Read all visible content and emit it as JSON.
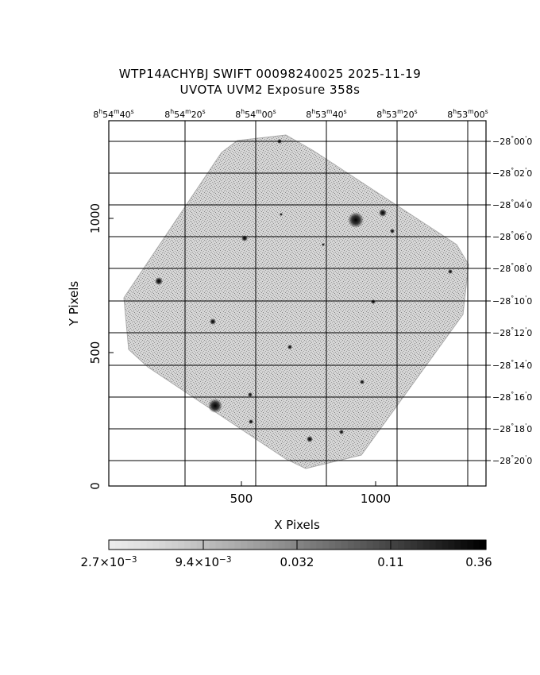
{
  "header": {
    "line1": "WTP14ACHYBJ SWIFT 00098240025 2025-11-19",
    "line2": "UVOTA UVM2 Exposure        358s"
  },
  "axes": {
    "x_label": "X Pixels",
    "y_label": "Y Pixels",
    "x_ticks": [
      "500",
      "1000"
    ],
    "y_ticks": [
      "0",
      "500",
      "1000"
    ],
    "ra_ticks": [
      {
        "h": "8",
        "m": "54",
        "s": "40"
      },
      {
        "h": "8",
        "m": "54",
        "s": "20"
      },
      {
        "h": "8",
        "m": "54",
        "s": "00"
      },
      {
        "h": "8",
        "m": "53",
        "s": "40"
      },
      {
        "h": "8",
        "m": "53",
        "s": "20"
      },
      {
        "h": "8",
        "m": "53",
        "s": "00"
      }
    ],
    "dec_ticks": [
      {
        "d": "−28",
        "m": "00",
        "s": "0"
      },
      {
        "d": "−28",
        "m": "02",
        "s": "0"
      },
      {
        "d": "−28",
        "m": "04",
        "s": "0"
      },
      {
        "d": "−28",
        "m": "06",
        "s": "0"
      },
      {
        "d": "−28",
        "m": "08",
        "s": "0"
      },
      {
        "d": "−28",
        "m": "10",
        "s": "0"
      },
      {
        "d": "−28",
        "m": "12",
        "s": "0"
      },
      {
        "d": "−28",
        "m": "14",
        "s": "0"
      },
      {
        "d": "−28",
        "m": "16",
        "s": "0"
      },
      {
        "d": "−28",
        "m": "18",
        "s": "0"
      },
      {
        "d": "−28",
        "m": "20",
        "s": "0"
      }
    ]
  },
  "colorbar": {
    "labels": [
      {
        "mant": "2.7×10",
        "exp": "−3"
      },
      {
        "mant": "9.4×10",
        "exp": "−3"
      },
      {
        "mant": "0.032",
        "exp": ""
      },
      {
        "mant": "0.11",
        "exp": ""
      },
      {
        "mant": "0.36",
        "exp": ""
      }
    ],
    "colors": [
      "#f2f2f2",
      "#c8c8c8",
      "#9a9a9a",
      "#6a6a6a",
      "#3a3a3a",
      "#000000"
    ]
  },
  "image": {
    "field_color": "#9a9a9a",
    "grid_color": "#000000"
  }
}
